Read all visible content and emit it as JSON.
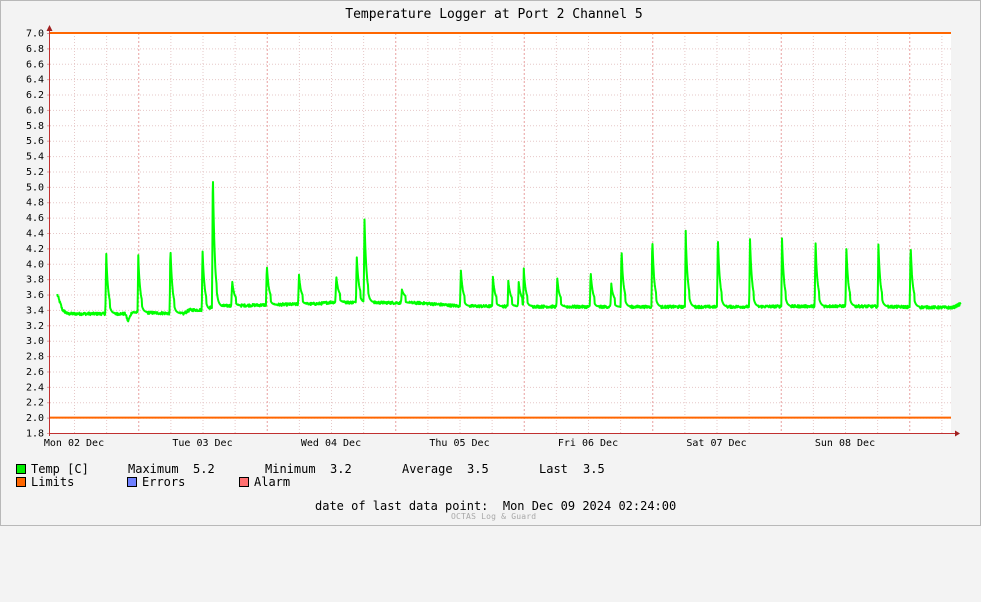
{
  "chart_data": {
    "type": "line",
    "title": "Temperature Logger at Port 2 Channel 5",
    "ylim": [
      1.8,
      7.0
    ],
    "y_ticks": [
      "7.0",
      "6.8",
      "6.6",
      "6.4",
      "6.2",
      "6.0",
      "5.8",
      "5.6",
      "5.4",
      "5.2",
      "5.0",
      "4.8",
      "4.6",
      "4.4",
      "4.2",
      "4.0",
      "3.8",
      "3.6",
      "3.4",
      "3.2",
      "3.0",
      "2.8",
      "2.6",
      "2.4",
      "2.2",
      "2.0",
      "1.8"
    ],
    "x_tick_labels": [
      "Mon 02 Dec",
      "Tue 03 Dec",
      "Wed 04 Dec",
      "Thu 05 Dec",
      "Fri 06 Dec",
      "Sat 07 Dec",
      "Sun 08 Dec"
    ],
    "xlim_days": [
      0,
      7.0
    ],
    "grid": true,
    "limits": {
      "upper": 7.0,
      "lower": 2.0
    },
    "series": [
      {
        "name": "Temp [C]",
        "color": "#00ff00",
        "x_unit": "days since Mon 02 Dec 00:00 (axis starts ~Sun 01 Dec 20:50)",
        "baseline": [
          [
            -0.13,
            3.6
          ],
          [
            -0.09,
            3.4
          ],
          [
            -0.05,
            3.35
          ],
          [
            0.4,
            3.35
          ],
          [
            0.42,
            3.25
          ],
          [
            0.45,
            3.37
          ],
          [
            0.85,
            3.35
          ],
          [
            0.9,
            3.4
          ],
          [
            1.0,
            3.4
          ],
          [
            1.1,
            3.45
          ],
          [
            1.9,
            3.48
          ],
          [
            2.0,
            3.5
          ],
          [
            2.7,
            3.49
          ],
          [
            3.0,
            3.45
          ],
          [
            4.0,
            3.44
          ],
          [
            5.0,
            3.44
          ],
          [
            6.0,
            3.45
          ],
          [
            6.84,
            3.43
          ],
          [
            6.9,
            3.48
          ]
        ],
        "spikes": [
          {
            "t": 0.25,
            "peak": 4.1
          },
          {
            "t": 0.5,
            "peak": 4.03
          },
          {
            "t": 0.75,
            "peak": 4.17
          },
          {
            "t": 1.0,
            "peak": 4.13
          },
          {
            "t": 1.08,
            "peak": 5.22
          },
          {
            "t": 1.23,
            "peak": 3.72
          },
          {
            "t": 1.5,
            "peak": 3.93
          },
          {
            "t": 1.75,
            "peak": 3.8
          },
          {
            "t": 2.04,
            "peak": 3.78
          },
          {
            "t": 2.2,
            "peak": 4.04
          },
          {
            "t": 2.26,
            "peak": 4.57
          },
          {
            "t": 2.55,
            "peak": 3.6
          },
          {
            "t": 3.01,
            "peak": 3.86
          },
          {
            "t": 3.26,
            "peak": 3.75
          },
          {
            "t": 3.38,
            "peak": 3.7
          },
          {
            "t": 3.46,
            "peak": 3.7
          },
          {
            "t": 3.5,
            "peak": 3.86
          },
          {
            "t": 3.76,
            "peak": 3.75
          },
          {
            "t": 4.02,
            "peak": 3.84
          },
          {
            "t": 4.18,
            "peak": 3.68
          },
          {
            "t": 4.26,
            "peak": 4.15
          },
          {
            "t": 4.5,
            "peak": 4.29
          },
          {
            "t": 4.76,
            "peak": 4.35
          },
          {
            "t": 5.01,
            "peak": 4.32
          },
          {
            "t": 5.26,
            "peak": 4.3
          },
          {
            "t": 5.51,
            "peak": 4.25
          },
          {
            "t": 5.77,
            "peak": 4.24
          },
          {
            "t": 6.01,
            "peak": 4.16
          },
          {
            "t": 6.26,
            "peak": 4.17
          },
          {
            "t": 6.51,
            "peak": 4.2
          }
        ]
      }
    ],
    "stats": {
      "maximum": "5.2",
      "minimum": "3.2",
      "average": "3.5",
      "last": "3.5"
    },
    "colors": {
      "temp": "#00ff00",
      "limits": "#ff6600",
      "errors": "#6f80ff",
      "alarm": "#ff7070",
      "grid_major": "#e8a0a0",
      "grid_minor": "#e6c8c8"
    }
  },
  "legend": {
    "temp_label": "Temp [C]",
    "max_label": "Maximum",
    "max_value": "5.2",
    "min_label": "Minimum",
    "min_value": "3.2",
    "avg_label": "Average",
    "avg_value": "3.5",
    "last_label": "Last",
    "last_value": "3.5",
    "limits_label": "Limits",
    "errors_label": "Errors",
    "alarm_label": "Alarm"
  },
  "footer": {
    "date_label": "date of last data point:",
    "date_value": "Mon Dec 09 2024 02:24:00",
    "watermark": "OCTAS Log & Guard"
  }
}
